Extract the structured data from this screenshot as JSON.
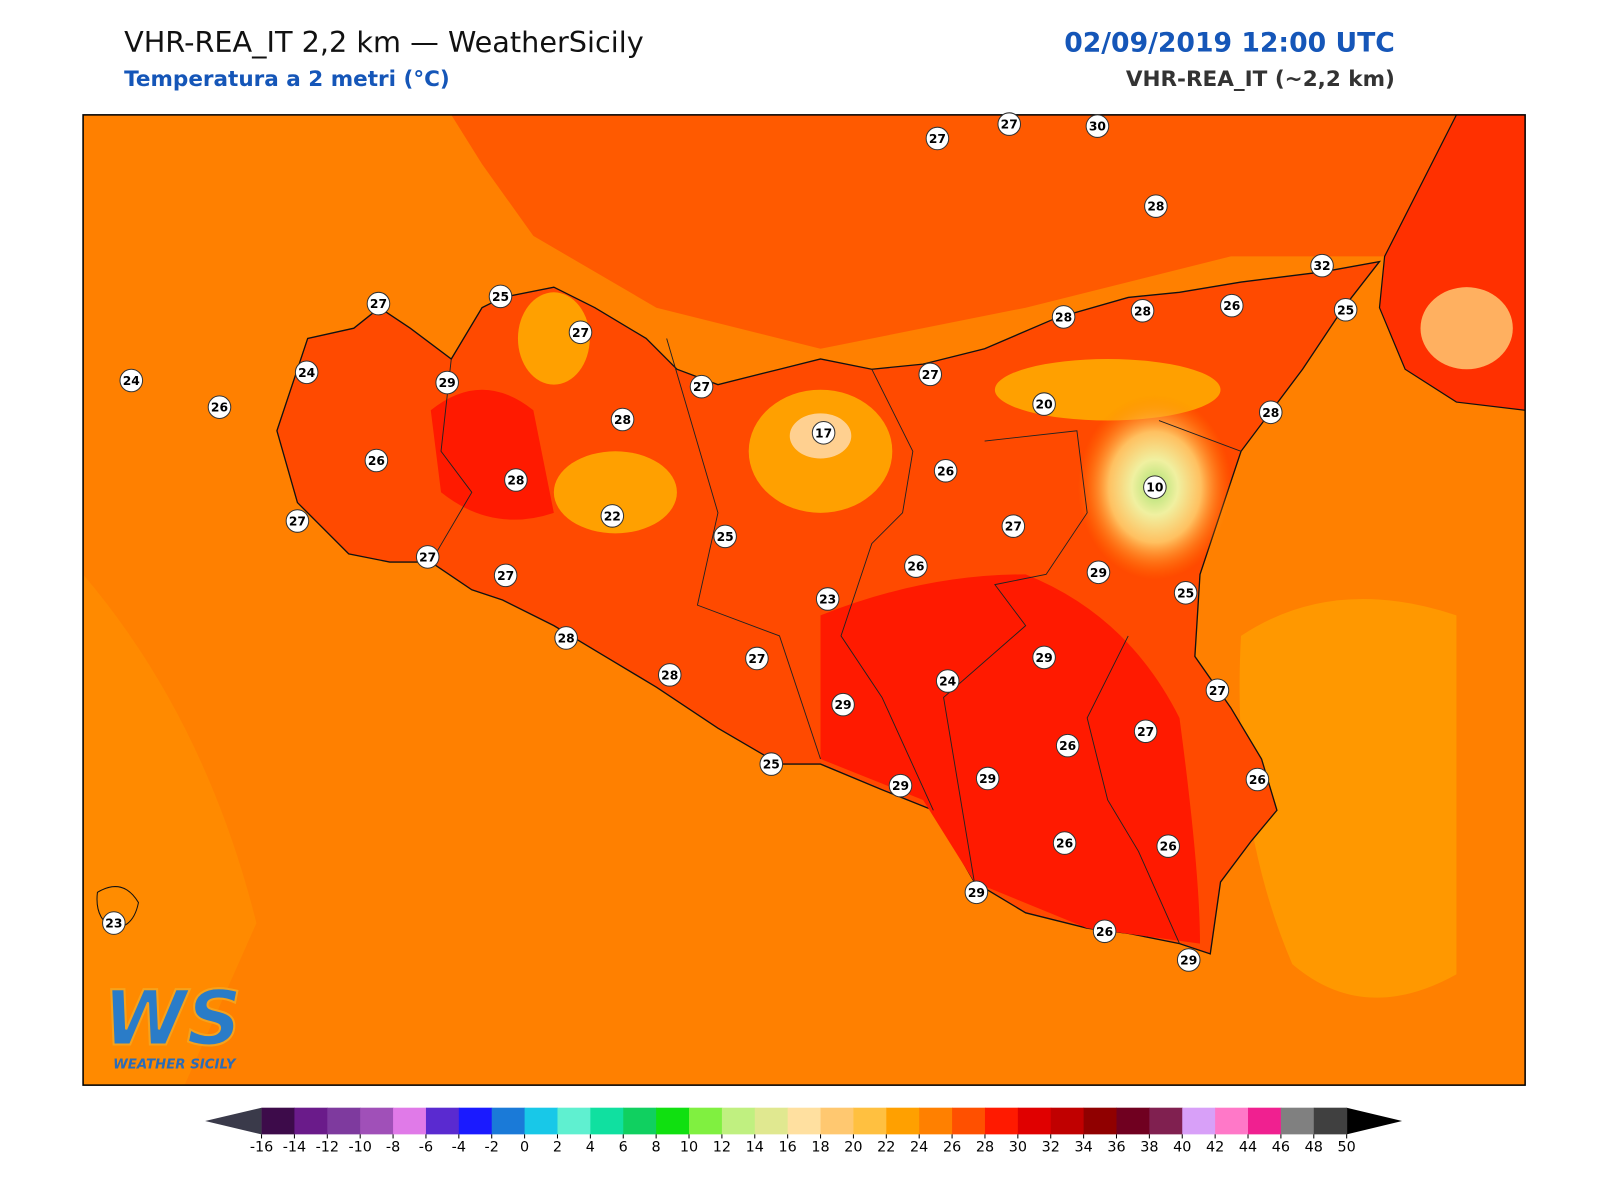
{
  "header": {
    "title": "VHR-REA_IT 2,2 km — WeatherSicily",
    "subtitle": "Temperatura a 2 metri (°C)",
    "datetime": "02/09/2019 12:00 UTC",
    "model": "VHR-REA_IT (~2,2 km)"
  },
  "logo": {
    "mark": "WS",
    "name": "WEATHER SICILY"
  },
  "stations": [
    27,
    27,
    30,
    28,
    32,
    25,
    26,
    28,
    28,
    27,
    20,
    28,
    10,
    26,
    27,
    29,
    25,
    26,
    23,
    25,
    22,
    17,
    27,
    28,
    27,
    25,
    27,
    29,
    24,
    24,
    26,
    26,
    28,
    27,
    27,
    27,
    28,
    28,
    27,
    29,
    24,
    29,
    27,
    27,
    26,
    26,
    29,
    29,
    25,
    26,
    26,
    29,
    26,
    29,
    23
  ],
  "colorbar": {
    "ticks": [
      -16,
      -14,
      -12,
      -10,
      -8,
      -6,
      -4,
      -2,
      0,
      2,
      4,
      6,
      8,
      10,
      12,
      14,
      16,
      18,
      20,
      22,
      24,
      26,
      28,
      30,
      32,
      34,
      36,
      38,
      40,
      42,
      44,
      46,
      48,
      50
    ],
    "colors": [
      "#3d0b4a",
      "#6a1b8a",
      "#7e3a9e",
      "#a050b8",
      "#e07ae8",
      "#5a2ad0",
      "#1a1aff",
      "#1a7ad8",
      "#18c8e8",
      "#5ff0d0",
      "#10e0a0",
      "#10d060",
      "#10e010",
      "#80f040",
      "#c0f080",
      "#e0e890",
      "#ffe0a0",
      "#ffc870",
      "#ffc040",
      "#ffa000",
      "#ff8000",
      "#ff5000",
      "#ff1a00",
      "#e00000",
      "#c00000",
      "#900000",
      "#700020",
      "#802050",
      "#d8a0f8",
      "#ff78c8",
      "#f02090",
      "#808080",
      "#404040"
    ],
    "under_color": "#3a3a4a",
    "over_color": "#000000"
  }
}
